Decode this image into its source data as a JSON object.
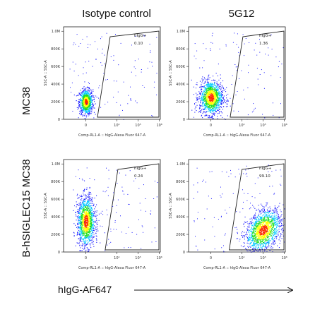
{
  "figure": {
    "column_titles": [
      "Isotype control",
      "5G12"
    ],
    "row_titles": [
      "MC38",
      "B-hSIGLEC15 MC38"
    ],
    "bottom_label": "hIgG-AF647"
  },
  "chart_data": [
    {
      "type": "scatter",
      "panel": "MC38 / Isotype control",
      "xlabel": "Comp-RL1-A :: hIgG-Alexa Fluor 647-A",
      "ylabel": "SSC-A :: SSC-A",
      "xscale": "biexponential",
      "x_ticks": [
        "0",
        "10⁴",
        "10⁵",
        "10⁶"
      ],
      "y_ticks": [
        "0",
        "200K",
        "400K",
        "600K",
        "800K",
        "1.0M"
      ],
      "ylim": [
        0,
        1050000
      ],
      "gate": {
        "name": "hIgG+",
        "percent": "0.10"
      },
      "population": {
        "x_center": 0,
        "y_center": 200000,
        "shape": "narrow vertical"
      }
    },
    {
      "type": "scatter",
      "panel": "MC38 / 5G12",
      "xlabel": "Comp-RL1-A :: hIgG-Alexa Fluor 647-A",
      "ylabel": "SSC-A :: SSC-A",
      "xscale": "biexponential",
      "x_ticks": [
        "0",
        "10⁴",
        "10⁵",
        "10⁶"
      ],
      "y_ticks": [
        "0",
        "200K",
        "400K",
        "600K",
        "800K",
        "1.0M"
      ],
      "ylim": [
        0,
        1050000
      ],
      "gate": {
        "name": "hIgG+",
        "percent": "1.36"
      },
      "population": {
        "x_center": 0,
        "y_center": 250000,
        "shape": "broad"
      }
    },
    {
      "type": "scatter",
      "panel": "B-hSIGLEC15 MC38 / Isotype control",
      "xlabel": "Comp-RL1-A :: hIgG-Alexa Fluor 647-A",
      "ylabel": "SSC-A :: SSC-A",
      "xscale": "biexponential",
      "x_ticks": [
        "0",
        "10⁴",
        "10⁵",
        "10⁶"
      ],
      "y_ticks": [
        "0",
        "200K",
        "400K",
        "600K",
        "800K",
        "1.0M"
      ],
      "ylim": [
        0,
        1050000
      ],
      "gate": {
        "name": "hIgG+",
        "percent": "0.24"
      },
      "population": {
        "x_center": 0,
        "y_center": 350000,
        "shape": "tall vertical"
      }
    },
    {
      "type": "scatter",
      "panel": "B-hSIGLEC15 MC38 / 5G12",
      "xlabel": "Comp-RL1-A :: hIgG-Alexa Fluor 647-A",
      "ylabel": "SSC-A :: SSC-A",
      "xscale": "biexponential",
      "x_ticks": [
        "0",
        "10⁴",
        "10⁵",
        "10⁶"
      ],
      "y_ticks": [
        "0",
        "200K",
        "400K",
        "600K",
        "800K",
        "1.0M"
      ],
      "ylim": [
        0,
        1050000
      ],
      "gate": {
        "name": "hIgG+",
        "percent": "99.10"
      },
      "population": {
        "x_center": 100000,
        "y_center": 250000,
        "shape": "shifted right"
      }
    }
  ],
  "colors": {
    "density_low": "#1a1aff",
    "density_mid_low": "#00c8ff",
    "density_mid": "#20e020",
    "density_mid_high": "#ffff00",
    "density_high": "#ff2a00",
    "frame": "#222222",
    "gate": "#222222"
  }
}
